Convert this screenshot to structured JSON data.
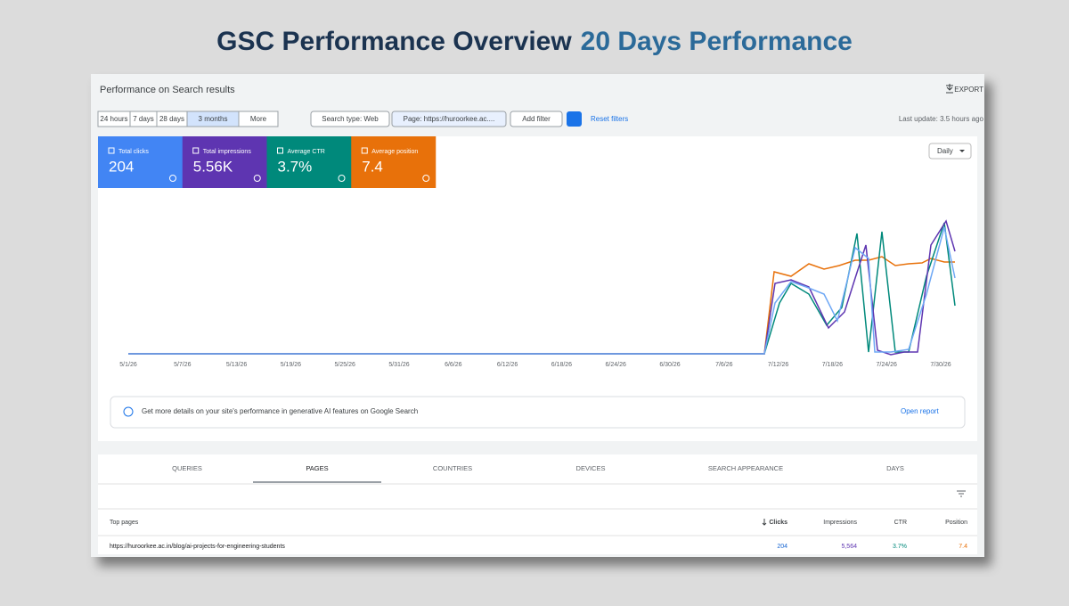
{
  "page_title": {
    "main": "GSC Performance Overview",
    "accent": "20 Days Performance"
  },
  "header": {
    "title": "Performance on Search results",
    "export": "EXPORT",
    "last_update": "Last update: 3.5 hours ago"
  },
  "filters": [
    "24 hours",
    "7 days",
    "28 days",
    "3 months",
    "More"
  ],
  "search_filters": {
    "type": "Search type: Web",
    "page": "Page: https://huroorkee.ac....",
    "add": "Add filter",
    "reset": "Reset filters"
  },
  "metrics": [
    {
      "label": "Total clicks",
      "value": "204",
      "color": "#4285f4"
    },
    {
      "label": "Total impressions",
      "value": "5.56K",
      "color": "#5e35b1"
    },
    {
      "label": "Average CTR",
      "value": "3.7%",
      "color": "#00897b"
    },
    {
      "label": "Average position",
      "value": "7.4",
      "color": "#e8710a"
    }
  ],
  "granularity": "Daily",
  "x_labels": [
    "5/1/26",
    "5/7/26",
    "5/13/26",
    "5/19/26",
    "5/25/26",
    "5/31/26",
    "6/6/26",
    "6/12/26",
    "6/18/26",
    "6/24/26",
    "6/30/26",
    "7/6/26",
    "7/12/26",
    "7/18/26",
    "7/24/26",
    "7/30/26"
  ],
  "info": {
    "text": "Get more details on your site's performance in generative AI features on Google Search",
    "link": "Open report"
  },
  "tabs": [
    "QUERIES",
    "PAGES",
    "COUNTRIES",
    "DEVICES",
    "SEARCH APPEARANCE",
    "DAYS"
  ],
  "table": {
    "headers": [
      "Top pages",
      "Clicks",
      "Impressions",
      "CTR",
      "Position"
    ],
    "rows": [
      [
        "https://huroorkee.ac.in/blog/ai-projects-for-engineering-students",
        "204",
        "5,564",
        "3.7%",
        "7.4"
      ]
    ]
  }
}
